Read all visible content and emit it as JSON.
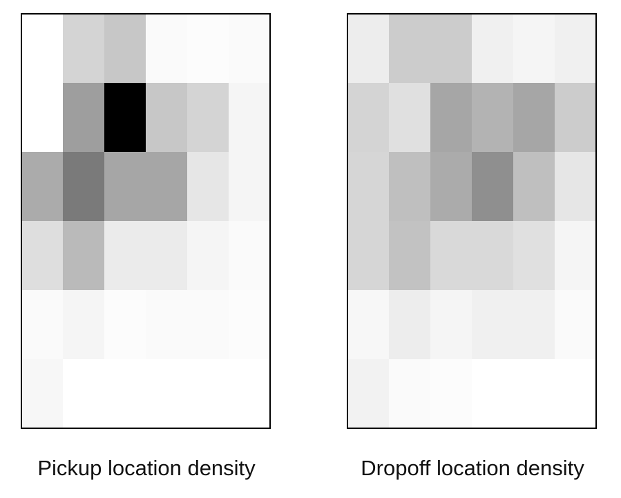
{
  "chart_data": [
    {
      "type": "heatmap",
      "title": "Pickup location density",
      "colormap": "gray_r",
      "rows": 6,
      "cols": 6,
      "values": [
        [
          0.0,
          0.17,
          0.22,
          0.02,
          0.01,
          0.02
        ],
        [
          0.0,
          0.38,
          1.0,
          0.22,
          0.17,
          0.04
        ],
        [
          0.33,
          0.52,
          0.35,
          0.35,
          0.1,
          0.04
        ],
        [
          0.13,
          0.27,
          0.08,
          0.08,
          0.04,
          0.02
        ],
        [
          0.02,
          0.04,
          0.01,
          0.02,
          0.02,
          0.01
        ],
        [
          0.03,
          0.0,
          0.0,
          0.0,
          0.0,
          0.0
        ]
      ]
    },
    {
      "type": "heatmap",
      "title": "Dropoff location density",
      "colormap": "gray_r",
      "rows": 6,
      "cols": 6,
      "values": [
        [
          0.07,
          0.2,
          0.2,
          0.06,
          0.04,
          0.06
        ],
        [
          0.17,
          0.12,
          0.35,
          0.3,
          0.35,
          0.2
        ],
        [
          0.16,
          0.25,
          0.33,
          0.44,
          0.25,
          0.1
        ],
        [
          0.16,
          0.24,
          0.15,
          0.15,
          0.12,
          0.04
        ],
        [
          0.03,
          0.07,
          0.04,
          0.06,
          0.06,
          0.02
        ],
        [
          0.05,
          0.02,
          0.01,
          0.0,
          0.0,
          0.0
        ]
      ]
    }
  ]
}
